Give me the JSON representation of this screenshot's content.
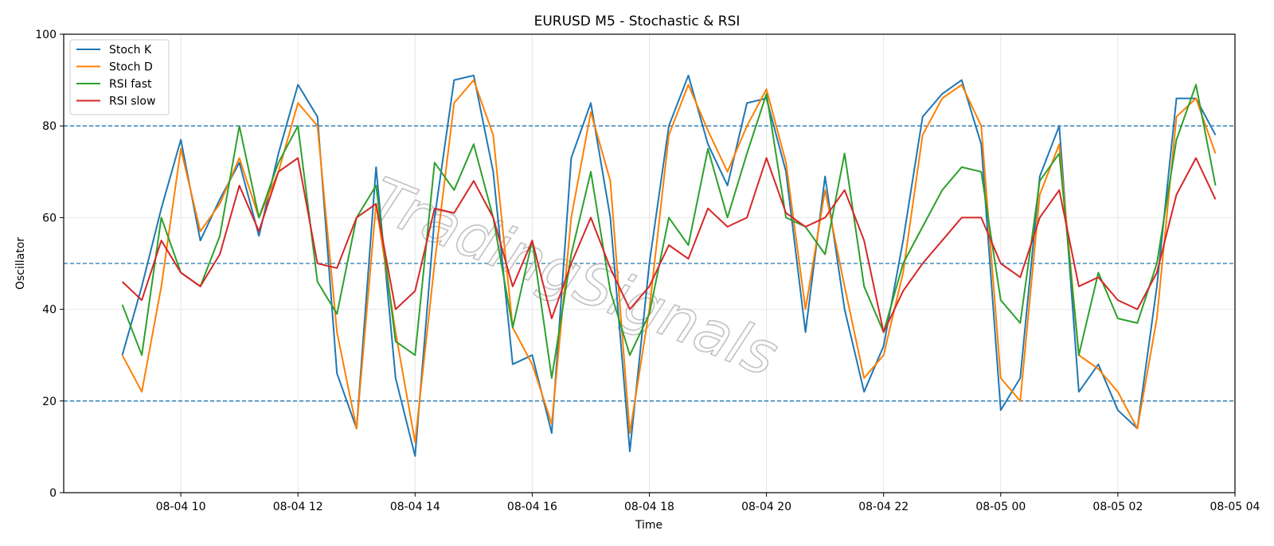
{
  "chart_data": {
    "type": "line",
    "title": "EURUSD M5 - Stochastic & RSI",
    "xlabel": "Time",
    "ylabel": "Oscillator",
    "ylim": [
      0,
      100
    ],
    "xlim_hours": [
      -1.0,
      19.0
    ],
    "x_start": "08-04 09:00",
    "x_step_minutes": 20,
    "grid": true,
    "legend_position": "top-left",
    "watermark": "TradingSignals",
    "x_ticks": [
      {
        "hour": 1,
        "label": "08-04 10"
      },
      {
        "hour": 3,
        "label": "08-04 12"
      },
      {
        "hour": 5,
        "label": "08-04 14"
      },
      {
        "hour": 7,
        "label": "08-04 16"
      },
      {
        "hour": 9,
        "label": "08-04 18"
      },
      {
        "hour": 11,
        "label": "08-04 20"
      },
      {
        "hour": 13,
        "label": "08-04 22"
      },
      {
        "hour": 15,
        "label": "08-05 00"
      },
      {
        "hour": 17,
        "label": "08-05 02"
      },
      {
        "hour": 19,
        "label": "08-05 04"
      }
    ],
    "y_ticks": [
      0,
      20,
      40,
      60,
      80,
      100
    ],
    "reference_lines": [
      {
        "y": 20,
        "color": "#1f77b4"
      },
      {
        "y": 50,
        "color": "#1f77b4"
      },
      {
        "y": 80,
        "color": "#1f77b4"
      }
    ],
    "series": [
      {
        "name": "Stoch K",
        "color": "#1f77b4",
        "values": [
          30,
          45,
          62,
          77,
          55,
          64,
          72,
          56,
          74,
          89,
          82,
          26,
          14,
          71,
          25,
          8,
          60,
          90,
          91,
          70,
          28,
          30,
          13,
          73,
          85,
          60,
          9,
          50,
          80,
          91,
          76,
          67,
          85,
          86,
          70,
          35,
          69,
          40,
          22,
          32,
          55,
          82,
          87,
          90,
          76,
          18,
          25,
          69,
          80,
          22,
          28,
          18,
          14,
          45,
          86,
          86,
          78
        ]
      },
      {
        "name": "Stoch D",
        "color": "#ff7f00",
        "values": [
          30,
          22,
          45,
          75,
          57,
          63,
          73,
          60,
          70,
          85,
          80,
          35,
          14,
          63,
          35,
          11,
          50,
          85,
          90,
          78,
          36,
          28,
          15,
          60,
          83,
          68,
          13,
          40,
          78,
          89,
          79,
          70,
          80,
          88,
          72,
          40,
          66,
          45,
          25,
          30,
          48,
          78,
          86,
          89,
          80,
          25,
          20,
          65,
          76,
          30,
          27,
          22,
          14,
          38,
          82,
          86,
          74
        ]
      },
      {
        "name": "RSI fast",
        "color": "#2ca02c",
        "values": [
          41,
          30,
          60,
          48,
          45,
          56,
          80,
          60,
          72,
          80,
          46,
          39,
          60,
          67,
          33,
          30,
          72,
          66,
          76,
          60,
          36,
          55,
          25,
          52,
          70,
          44,
          30,
          39,
          60,
          54,
          75,
          60,
          74,
          87,
          60,
          58,
          52,
          74,
          45,
          35,
          50,
          58,
          66,
          71,
          70,
          42,
          37,
          68,
          74,
          30,
          48,
          38,
          37,
          50,
          77,
          89,
          67
        ]
      },
      {
        "name": "RSI slow",
        "color": "#d62728",
        "values": [
          46,
          42,
          55,
          48,
          45,
          52,
          67,
          57,
          70,
          73,
          50,
          49,
          60,
          63,
          40,
          44,
          62,
          61,
          68,
          60,
          45,
          55,
          38,
          50,
          60,
          49,
          40,
          45,
          54,
          51,
          62,
          58,
          60,
          73,
          61,
          58,
          60,
          66,
          55,
          35,
          44,
          50,
          55,
          60,
          60,
          50,
          47,
          60,
          66,
          45,
          47,
          42,
          40,
          48,
          65,
          73,
          64
        ]
      }
    ]
  }
}
